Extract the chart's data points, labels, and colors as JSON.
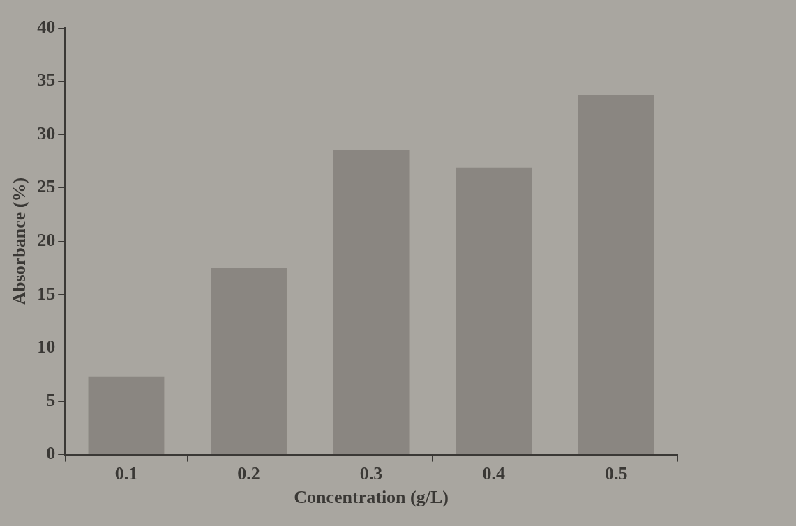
{
  "chart_data": {
    "type": "bar",
    "xlabel": "Concentration (g/L)",
    "ylabel": "Absorbance (%)",
    "categories": [
      "0.1",
      "0.2",
      "0.3",
      "0.4",
      "0.5"
    ],
    "values": [
      7.3,
      17.5,
      28.5,
      26.9,
      33.7
    ],
    "color": "#8a8681",
    "ylim": [
      0,
      40
    ],
    "yticks": [
      0,
      5,
      10,
      15,
      20,
      25,
      30,
      35,
      40
    ],
    "grid": false,
    "legend": false
  }
}
